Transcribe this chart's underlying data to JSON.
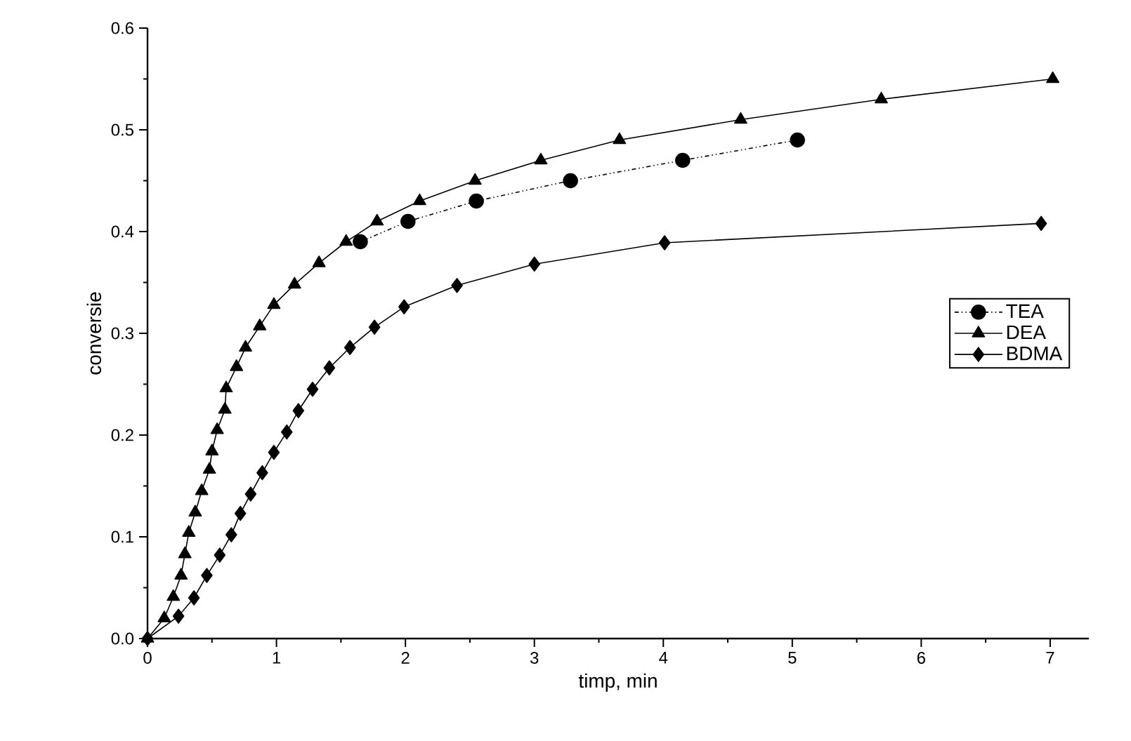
{
  "chart_data": {
    "type": "line",
    "xlabel": "timp, min",
    "ylabel": "conversie",
    "xlim": [
      0,
      7.3
    ],
    "ylim": [
      0,
      0.6
    ],
    "xticks": [
      0,
      1,
      2,
      3,
      4,
      5,
      6,
      7
    ],
    "yticks": [
      {
        "value": 0,
        "label": "0.0"
      },
      {
        "value": 0.1,
        "label": "0.1"
      },
      {
        "value": 0.2,
        "label": "0.2"
      },
      {
        "value": 0.3,
        "label": "0.3"
      },
      {
        "value": 0.4,
        "label": "0.4"
      },
      {
        "value": 0.5,
        "label": "0.5"
      },
      {
        "value": 0.6,
        "label": "0.6"
      }
    ],
    "grid": false,
    "legend": "right",
    "series": [
      {
        "name": "TEA",
        "color": "#000000",
        "marker": "circle",
        "line_style": "dotted",
        "x": [
          1.65,
          2.02,
          2.55,
          3.28,
          4.15,
          5.04
        ],
        "values": [
          0.39,
          0.41,
          0.43,
          0.45,
          0.47,
          0.49
        ]
      },
      {
        "name": "DEA",
        "color": "#000000",
        "marker": "triangle",
        "line_style": "solid",
        "x": [
          0,
          0.13,
          0.2,
          0.26,
          0.29,
          0.32,
          0.37,
          0.42,
          0.48,
          0.5,
          0.54,
          0.6,
          0.61,
          0.69,
          0.76,
          0.87,
          0.98,
          1.14,
          1.33,
          1.54,
          1.78,
          2.11,
          2.54,
          3.05,
          3.66,
          4.6,
          5.69,
          7.02
        ],
        "values": [
          0,
          0.02,
          0.041,
          0.062,
          0.083,
          0.104,
          0.124,
          0.145,
          0.166,
          0.184,
          0.205,
          0.225,
          0.246,
          0.267,
          0.286,
          0.307,
          0.328,
          0.348,
          0.369,
          0.39,
          0.41,
          0.43,
          0.45,
          0.47,
          0.49,
          0.51,
          0.53,
          0.55
        ]
      },
      {
        "name": "BDMA",
        "color": "#000000",
        "marker": "diamond",
        "line_style": "solid",
        "x": [
          0,
          0.24,
          0.36,
          0.46,
          0.56,
          0.65,
          0.72,
          0.8,
          0.89,
          0.98,
          1.08,
          1.17,
          1.28,
          1.41,
          1.57,
          1.76,
          1.99,
          2.4,
          3.0,
          4.01,
          6.93
        ],
        "values": [
          0,
          0.022,
          0.04,
          0.062,
          0.082,
          0.102,
          0.123,
          0.142,
          0.163,
          0.183,
          0.203,
          0.224,
          0.245,
          0.266,
          0.286,
          0.306,
          0.326,
          0.347,
          0.368,
          0.389,
          0.408
        ]
      }
    ]
  }
}
